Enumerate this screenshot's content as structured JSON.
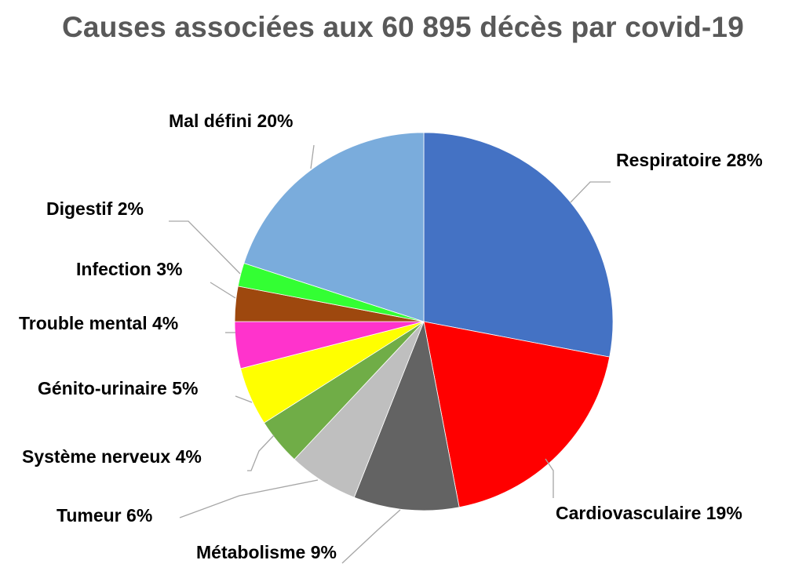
{
  "chart_data": {
    "type": "pie",
    "title": "Causes associées aux 60 895 décès par covid-19",
    "slices": [
      {
        "label": "Respiratoire",
        "value": 28,
        "display": "Respiratoire 28%",
        "color": "#4472c4"
      },
      {
        "label": "Cardiovasculaire",
        "value": 19,
        "display": "Cardiovasculaire 19%",
        "color": "#ff0000"
      },
      {
        "label": "Métabolisme",
        "value": 9,
        "display": "Métabolisme 9%",
        "color": "#636363"
      },
      {
        "label": "Tumeur",
        "value": 6,
        "display": "Tumeur 6%",
        "color": "#bfbfbf"
      },
      {
        "label": "Système nerveux",
        "value": 4,
        "display": "Système nerveux 4%",
        "color": "#70ad47"
      },
      {
        "label": "Génito-urinaire",
        "value": 5,
        "display": "Génito-urinaire 5%",
        "color": "#ffff00"
      },
      {
        "label": "Trouble mental",
        "value": 4,
        "display": "Trouble mental 4%",
        "color": "#ff33cc"
      },
      {
        "label": "Infection",
        "value": 3,
        "display": "Infection 3%",
        "color": "#9e480e"
      },
      {
        "label": "Digestif",
        "value": 2,
        "display": "Digestif 2%",
        "color": "#33ff33"
      },
      {
        "label": "Mal défini",
        "value": 20,
        "display": "Mal défini 20%",
        "color": "#7aacdc"
      }
    ],
    "legend": "none",
    "data_labels": "outside with leader lines"
  }
}
